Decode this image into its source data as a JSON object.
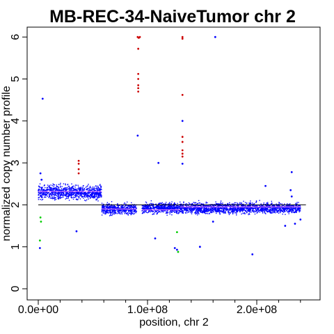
{
  "chart_data": {
    "type": "scatter",
    "title": "MB-REC-34-NaiveTumor chr 2",
    "xlabel": "position, chr 2",
    "ylabel": "normalized copy number profile",
    "xlim": [
      0,
      245000000
    ],
    "ylim": [
      0,
      6
    ],
    "x_ticks": [
      {
        "value": 0,
        "label": "0.0e+00"
      },
      {
        "value": 100000000,
        "label": "1.0e+08"
      },
      {
        "value": 200000000,
        "label": "2.0e+08"
      }
    ],
    "y_ticks": [
      {
        "value": 0,
        "label": "0"
      },
      {
        "value": 1,
        "label": "1"
      },
      {
        "value": 2,
        "label": "2"
      },
      {
        "value": 3,
        "label": "3"
      },
      {
        "value": 4,
        "label": "4"
      },
      {
        "value": 5,
        "label": "5"
      },
      {
        "value": 6,
        "label": "6"
      }
    ],
    "baseline": 2,
    "colors": {
      "normal": "#0000ff",
      "gain": "#cc0000",
      "loss": "#00cc00",
      "segment": "#ff88ff",
      "baseline": "#000000"
    },
    "segments": [
      {
        "x_start": 0,
        "x_end": 58000000,
        "y": 2.32
      },
      {
        "x_start": 58000000,
        "x_end": 90000000,
        "y": 1.9
      },
      {
        "x_start": 95000000,
        "x_end": 130000000,
        "y": 1.88
      },
      {
        "x_start": 130000000,
        "x_end": 240000000,
        "y": 1.95
      }
    ],
    "dense_regions": [
      {
        "x_start": 0,
        "x_end": 58000000,
        "y_center": 2.3,
        "y_spread": 0.16
      },
      {
        "x_start": 58000000,
        "x_end": 90000000,
        "y_center": 1.9,
        "y_spread": 0.12
      },
      {
        "x_start": 95000000,
        "x_end": 240000000,
        "y_center": 1.92,
        "y_spread": 0.12
      }
    ],
    "points": [
      {
        "x": 4000000,
        "y": 4.53,
        "class": "normal"
      },
      {
        "x": 2000000,
        "y": 2.75,
        "class": "normal"
      },
      {
        "x": 3000000,
        "y": 2.6,
        "class": "normal"
      },
      {
        "x": 2000000,
        "y": 1.7,
        "class": "loss"
      },
      {
        "x": 2500000,
        "y": 1.6,
        "class": "loss"
      },
      {
        "x": 1500000,
        "y": 1.15,
        "class": "loss"
      },
      {
        "x": 1500000,
        "y": 0.97,
        "class": "normal"
      },
      {
        "x": 37000000,
        "y": 3.05,
        "class": "gain"
      },
      {
        "x": 37000000,
        "y": 2.98,
        "class": "gain"
      },
      {
        "x": 37000000,
        "y": 2.85,
        "class": "gain"
      },
      {
        "x": 37000000,
        "y": 2.75,
        "class": "gain"
      },
      {
        "x": 35000000,
        "y": 1.37,
        "class": "normal"
      },
      {
        "x": 91000000,
        "y": 6.0,
        "class": "gain"
      },
      {
        "x": 93000000,
        "y": 6.0,
        "class": "gain"
      },
      {
        "x": 92000000,
        "y": 5.98,
        "class": "gain"
      },
      {
        "x": 91500000,
        "y": 5.72,
        "class": "gain"
      },
      {
        "x": 91500000,
        "y": 5.12,
        "class": "gain"
      },
      {
        "x": 91500000,
        "y": 5.0,
        "class": "gain"
      },
      {
        "x": 91500000,
        "y": 4.85,
        "class": "gain"
      },
      {
        "x": 91500000,
        "y": 4.78,
        "class": "gain"
      },
      {
        "x": 91500000,
        "y": 4.7,
        "class": "gain"
      },
      {
        "x": 91000000,
        "y": 3.65,
        "class": "normal"
      },
      {
        "x": 110000000,
        "y": 3.0,
        "class": "normal"
      },
      {
        "x": 132000000,
        "y": 6.0,
        "class": "gain"
      },
      {
        "x": 132000000,
        "y": 5.96,
        "class": "gain"
      },
      {
        "x": 132000000,
        "y": 4.62,
        "class": "gain"
      },
      {
        "x": 132000000,
        "y": 4.0,
        "class": "normal"
      },
      {
        "x": 132000000,
        "y": 3.62,
        "class": "gain"
      },
      {
        "x": 132000000,
        "y": 3.5,
        "class": "gain"
      },
      {
        "x": 132000000,
        "y": 3.3,
        "class": "gain"
      },
      {
        "x": 132000000,
        "y": 3.22,
        "class": "gain"
      },
      {
        "x": 132000000,
        "y": 3.15,
        "class": "gain"
      },
      {
        "x": 132000000,
        "y": 2.98,
        "class": "normal"
      },
      {
        "x": 162000000,
        "y": 6.0,
        "class": "normal"
      },
      {
        "x": 127000000,
        "y": 1.35,
        "class": "loss"
      },
      {
        "x": 125000000,
        "y": 0.97,
        "class": "normal"
      },
      {
        "x": 127000000,
        "y": 0.93,
        "class": "normal"
      },
      {
        "x": 128000000,
        "y": 0.88,
        "class": "loss"
      },
      {
        "x": 107000000,
        "y": 1.2,
        "class": "normal"
      },
      {
        "x": 148000000,
        "y": 1.0,
        "class": "normal"
      },
      {
        "x": 196000000,
        "y": 0.82,
        "class": "normal"
      },
      {
        "x": 208000000,
        "y": 2.45,
        "class": "normal"
      },
      {
        "x": 232000000,
        "y": 2.78,
        "class": "normal"
      },
      {
        "x": 231000000,
        "y": 2.35,
        "class": "normal"
      },
      {
        "x": 232000000,
        "y": 2.2,
        "class": "normal"
      },
      {
        "x": 226000000,
        "y": 1.5,
        "class": "normal"
      },
      {
        "x": 235000000,
        "y": 1.55,
        "class": "normal"
      },
      {
        "x": 240000000,
        "y": 1.65,
        "class": "normal"
      },
      {
        "x": 160000000,
        "y": 1.6,
        "class": "normal"
      }
    ]
  }
}
